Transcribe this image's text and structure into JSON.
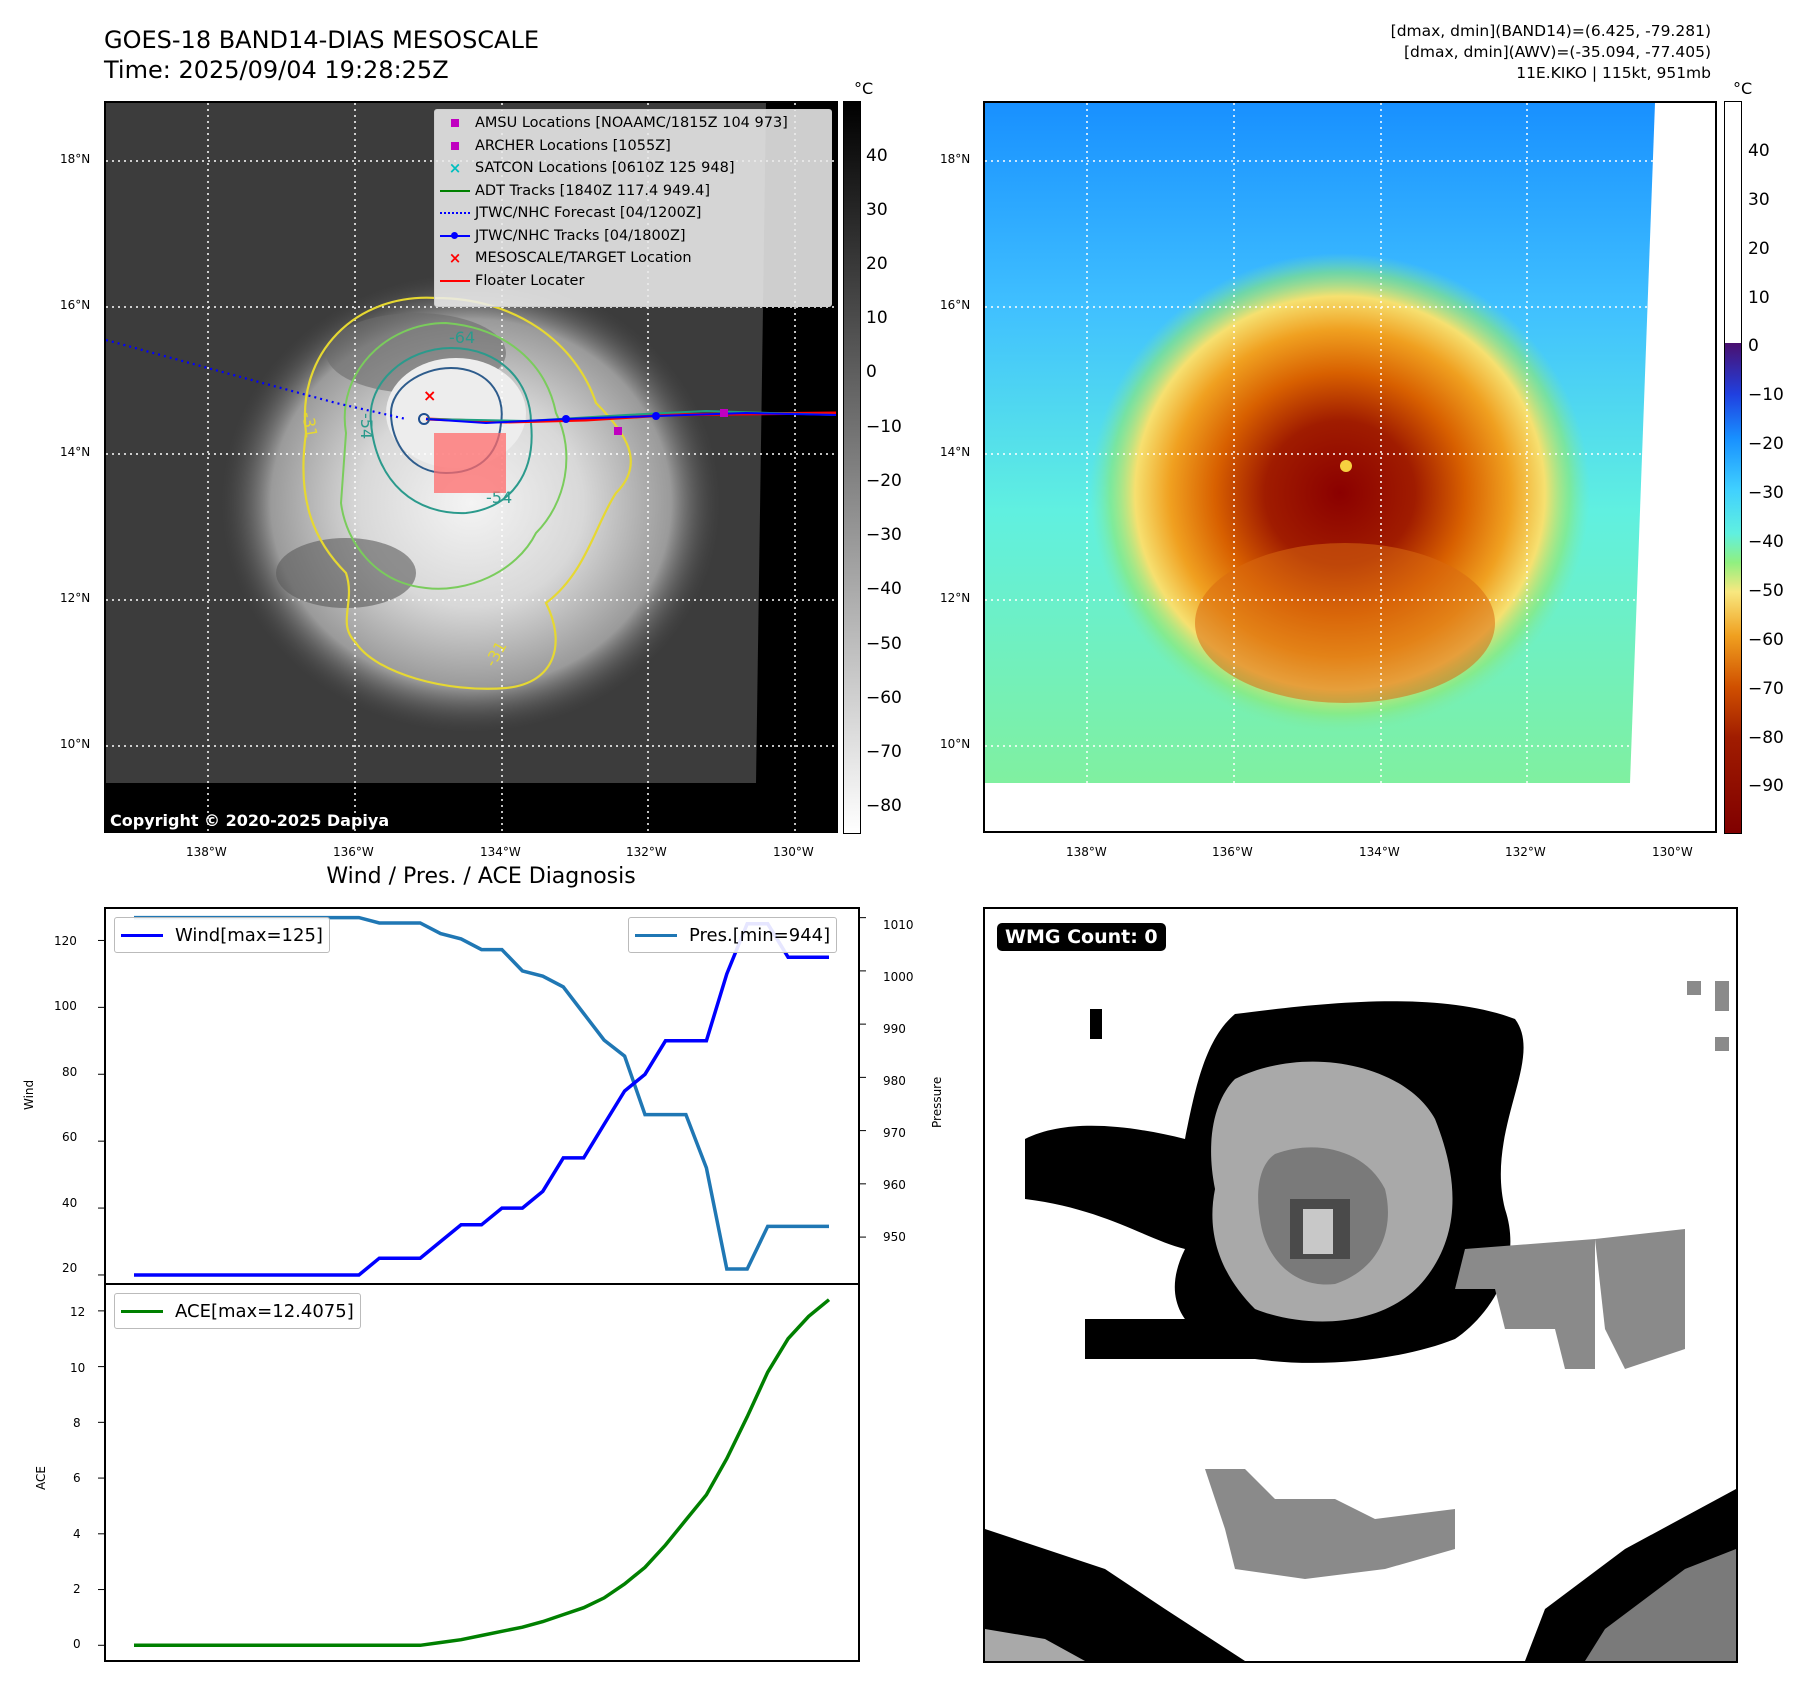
{
  "header": {
    "title_line1": "GOES-18 BAND14-DIAS MESOSCALE",
    "title_line2": "Time: 2025/09/04 19:28:25Z",
    "info_line1": "[dmax, dmin](BAND14)=(6.425, -79.281)",
    "info_line2": "[dmax, dmin](AWV)=(-35.094, -77.405)",
    "info_line3": "11E.KIKO | 115kt, 951mb"
  },
  "map": {
    "lat_labels": [
      "18°N",
      "16°N",
      "14°N",
      "12°N",
      "10°N"
    ],
    "lon_labels": [
      "138°W",
      "136°W",
      "134°W",
      "132°W",
      "130°W"
    ],
    "copyright": "Copyright © 2020-2025 Dapiya",
    "contour_labels": [
      "-64",
      "-54",
      "-31",
      "-31",
      "-54"
    ],
    "legend": [
      {
        "label": "AMSU Locations [NOAAMC/1815Z 104 973]",
        "icon": "square-marker",
        "color": "#c000c0"
      },
      {
        "label": "ARCHER Locations [1055Z]",
        "icon": "square-marker",
        "color": "#c000c0"
      },
      {
        "label": "SATCON Locations [0610Z 125 948]",
        "icon": "x-marker",
        "color": "#00bfbf"
      },
      {
        "label": "ADT Tracks [1840Z 117.4 949.4]",
        "icon": "solid-line",
        "color": "#008000"
      },
      {
        "label": "JTWC/NHC Forecast [04/1200Z]",
        "icon": "dotted-line",
        "color": "#0000ff"
      },
      {
        "label": "JTWC/NHC Tracks [04/1800Z]",
        "icon": "line-dot",
        "color": "#0000ff"
      },
      {
        "label": "MESOSCALE/TARGET Location",
        "icon": "x-marker",
        "color": "#ff0000"
      },
      {
        "label": "Floater Locater",
        "icon": "solid-line",
        "color": "#ff0000"
      }
    ]
  },
  "colorbars": {
    "unit": "°C",
    "left_ticks": [
      "40",
      "30",
      "20",
      "10",
      "0",
      "−10",
      "−20",
      "−30",
      "−40",
      "−50",
      "−60",
      "−70",
      "−80"
    ],
    "right_ticks": [
      "40",
      "30",
      "20",
      "10",
      "0",
      "−10",
      "−20",
      "−30",
      "−40",
      "−50",
      "−60",
      "−70",
      "−80",
      "−90"
    ]
  },
  "diagnosis": {
    "title": "Wind / Pres. / ACE Diagnosis",
    "wind_legend": "Wind[max=125]",
    "pres_legend": "Pres.[min=944]",
    "ace_legend": "ACE[max=12.4075]",
    "wind_ylabel": "Wind",
    "pres_ylabel": "Pressure",
    "ace_ylabel": "ACE",
    "wind_ticks": [
      "120",
      "100",
      "80",
      "60",
      "40",
      "20"
    ],
    "pres_ticks": [
      "1010",
      "1000",
      "990",
      "980",
      "970",
      "960",
      "950"
    ],
    "ace_ticks": [
      "12",
      "10",
      "8",
      "6",
      "4",
      "2",
      "0"
    ],
    "colors": {
      "wind": "#0000ff",
      "pres": "#1f77b4",
      "ace": "#008000"
    }
  },
  "wmg": {
    "label": "WMG Count: 0"
  },
  "chart_data": [
    {
      "type": "line",
      "title": "Wind / Pres. / ACE Diagnosis",
      "x": [
        0,
        1,
        2,
        3,
        4,
        5,
        6,
        7,
        8,
        9,
        10,
        11,
        12,
        13,
        14,
        15,
        16,
        17,
        18,
        19,
        20,
        21,
        22,
        23,
        24,
        25,
        26,
        27,
        28,
        29,
        30,
        31,
        32,
        33,
        34
      ],
      "series": [
        {
          "name": "Wind[max=125]",
          "axis": "left",
          "values": [
            20,
            20,
            20,
            20,
            20,
            20,
            20,
            20,
            20,
            20,
            20,
            20,
            25,
            25,
            25,
            30,
            35,
            35,
            40,
            40,
            45,
            55,
            55,
            65,
            75,
            80,
            90,
            90,
            90,
            110,
            125,
            125,
            115,
            115,
            115
          ]
        },
        {
          "name": "Pres.[min=944]",
          "axis": "right",
          "values": [
            1010,
            1010,
            1010,
            1010,
            1010,
            1010,
            1010,
            1010,
            1010,
            1010,
            1010,
            1010,
            1009,
            1009,
            1009,
            1007,
            1006,
            1004,
            1004,
            1000,
            999,
            997,
            992,
            987,
            984,
            973,
            973,
            973,
            963,
            944,
            944,
            952,
            952,
            952,
            952
          ]
        }
      ],
      "ylim_left": [
        17,
        130
      ],
      "ylim_right": [
        941,
        1012
      ]
    },
    {
      "type": "line",
      "x": [
        0,
        1,
        2,
        3,
        4,
        5,
        6,
        7,
        8,
        9,
        10,
        11,
        12,
        13,
        14,
        15,
        16,
        17,
        18,
        19,
        20,
        21,
        22,
        23,
        24,
        25,
        26,
        27,
        28,
        29,
        30,
        31,
        32,
        33,
        34
      ],
      "series": [
        {
          "name": "ACE[max=12.4075]",
          "values": [
            0,
            0,
            0,
            0,
            0,
            0,
            0,
            0,
            0,
            0,
            0,
            0,
            0,
            0,
            0,
            0.1,
            0.2,
            0.35,
            0.5,
            0.65,
            0.85,
            1.1,
            1.35,
            1.7,
            2.2,
            2.8,
            3.6,
            4.5,
            5.4,
            6.7,
            8.2,
            9.8,
            11.0,
            11.8,
            12.4
          ]
        }
      ],
      "ylim": [
        -0.6,
        13.0
      ]
    }
  ]
}
